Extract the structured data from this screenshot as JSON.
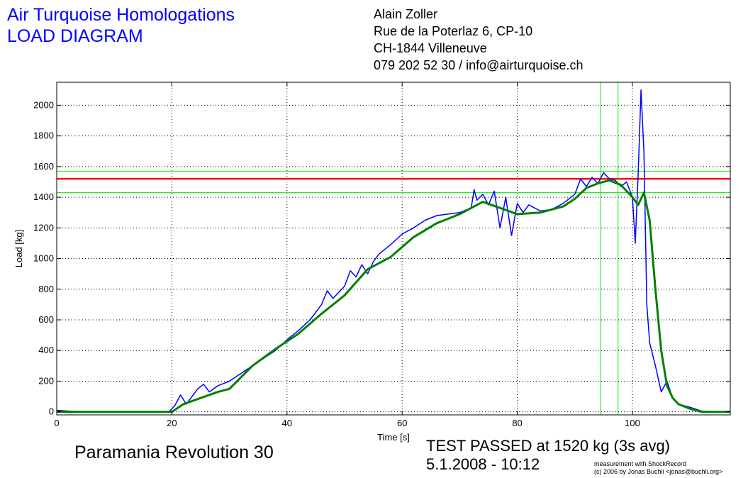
{
  "header": {
    "title_line1": "Air Turquoise Homologations",
    "title_line2": "LOAD DIAGRAM",
    "contact": [
      "Alain Zoller",
      "Rue de la Poterlaz 6, CP-10",
      "CH-1844 Villeneuve",
      "079 202 52 30 / info@airturquoise.ch"
    ]
  },
  "footer": {
    "model": "Paramania Revolution 30",
    "result": "TEST PASSED at 1520 kg (3s avg)",
    "datetime": "5.1.2008 - 10:12",
    "credit_line1": "measurement with ShockRecord",
    "credit_line2": "(c) 2006 by Jonas Buchli <jonas@buchli.org>"
  },
  "chart_data": {
    "type": "line",
    "title": "",
    "xlabel": "Time [s]",
    "ylabel": "Load [kg]",
    "xlim": [
      0,
      117
    ],
    "ylim": [
      -20,
      2150
    ],
    "xticks": [
      0,
      20,
      40,
      60,
      80,
      100
    ],
    "yticks": [
      0,
      200,
      400,
      600,
      800,
      1000,
      1200,
      1400,
      1600,
      1800,
      2000
    ],
    "grid": true,
    "colors": {
      "raw": "#0000ff",
      "average": "#008000",
      "test_load": "#ff0000",
      "guides": "#00ee00"
    },
    "series": [
      {
        "role": "raw",
        "x": [
          0,
          2,
          5,
          10,
          15,
          19.5,
          20.5,
          21.5,
          22.5,
          23.5,
          24.5,
          25.5,
          26.5,
          28,
          30,
          32,
          34,
          36,
          38,
          40,
          42,
          44,
          46,
          47,
          48,
          50,
          51,
          52,
          53,
          54,
          55,
          56,
          58,
          60,
          62,
          64,
          66,
          68,
          70,
          72,
          72.5,
          73,
          74,
          75,
          76,
          77,
          78,
          79,
          80,
          81,
          82,
          84,
          86,
          88,
          90,
          91,
          92,
          93,
          94,
          95,
          96,
          97,
          98,
          99,
          100,
          100.5,
          101,
          101.5,
          102,
          102.5,
          103,
          104,
          105,
          106,
          107,
          108,
          110,
          112,
          114,
          117
        ],
        "y": [
          10,
          5,
          0,
          0,
          0,
          0,
          40,
          110,
          50,
          100,
          150,
          180,
          130,
          170,
          200,
          250,
          300,
          350,
          400,
          470,
          530,
          600,
          700,
          790,
          740,
          820,
          920,
          880,
          960,
          900,
          980,
          1030,
          1090,
          1160,
          1200,
          1250,
          1280,
          1290,
          1300,
          1330,
          1450,
          1380,
          1420,
          1350,
          1440,
          1200,
          1400,
          1150,
          1360,
          1300,
          1350,
          1310,
          1320,
          1360,
          1420,
          1520,
          1470,
          1530,
          1490,
          1560,
          1520,
          1510,
          1470,
          1500,
          1400,
          1100,
          1550,
          2100,
          1700,
          700,
          450,
          300,
          130,
          200,
          90,
          50,
          30,
          5,
          0,
          0
        ]
      },
      {
        "role": "average",
        "x": [
          0,
          5,
          10,
          15,
          20,
          22,
          25,
          28,
          30,
          34,
          38,
          42,
          46,
          50,
          54,
          58,
          62,
          66,
          70,
          74,
          77,
          80,
          84,
          88,
          90,
          92,
          94,
          96,
          98,
          100,
          101,
          102,
          103,
          104,
          105,
          106,
          107,
          108,
          110,
          112,
          114,
          117
        ],
        "y": [
          0,
          0,
          0,
          0,
          0,
          50,
          90,
          130,
          150,
          300,
          410,
          510,
          640,
          760,
          930,
          1010,
          1140,
          1230,
          1290,
          1370,
          1330,
          1290,
          1300,
          1340,
          1390,
          1460,
          1490,
          1510,
          1480,
          1400,
          1350,
          1430,
          1250,
          800,
          400,
          170,
          90,
          50,
          20,
          0,
          0,
          0
        ]
      }
    ],
    "reference_lines": {
      "horizontal": [
        1520,
        1570,
        1430
      ],
      "vertical": [
        94.5,
        97.5
      ]
    }
  }
}
